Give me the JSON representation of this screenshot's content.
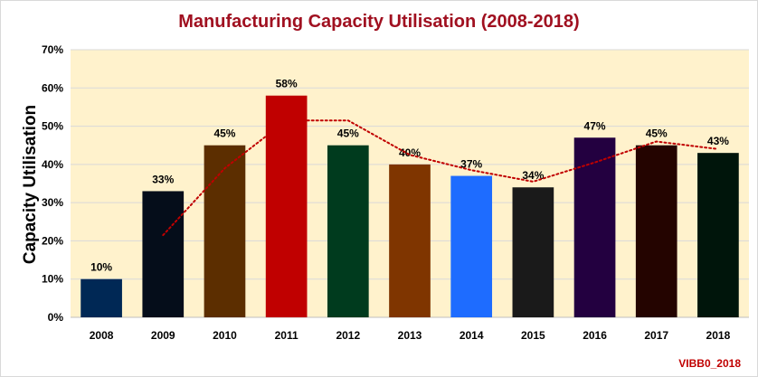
{
  "chart_data": {
    "type": "bar",
    "title": "Manufacturing Capacity Utilisation (2008-2018)",
    "title_color": "#a01020",
    "ylabel": "Capacity Utilisation",
    "xlabel": "",
    "categories": [
      "2008",
      "2009",
      "2010",
      "2011",
      "2012",
      "2013",
      "2014",
      "2015",
      "2016",
      "2017",
      "2018"
    ],
    "values": [
      10,
      33,
      45,
      58,
      45,
      40,
      37,
      34,
      47,
      45,
      43
    ],
    "data_labels": [
      "10%",
      "33%",
      "45%",
      "58%",
      "45%",
      "40%",
      "37%",
      "34%",
      "47%",
      "45%",
      "43%"
    ],
    "bar_colors": [
      "#002855",
      "#050d1a",
      "#5c2e00",
      "#c00000",
      "#003b1e",
      "#7f3500",
      "#1e6cff",
      "#1a1a1a",
      "#230040",
      "#240400",
      "#00150b"
    ],
    "ylim": [
      0,
      70
    ],
    "yticks": [
      0,
      10,
      20,
      30,
      40,
      50,
      60,
      70
    ],
    "ytick_labels": [
      "0%",
      "10%",
      "20%",
      "30%",
      "40%",
      "50%",
      "60%",
      "70%"
    ],
    "grid": true,
    "plot_background": "#fff2cc",
    "trendline": {
      "type": "moving-average",
      "period": 2,
      "color": "#c00000",
      "style": "dotted"
    },
    "legend": "none"
  },
  "watermark": {
    "text": "VIBB0_2018",
    "color": "#c00000"
  }
}
